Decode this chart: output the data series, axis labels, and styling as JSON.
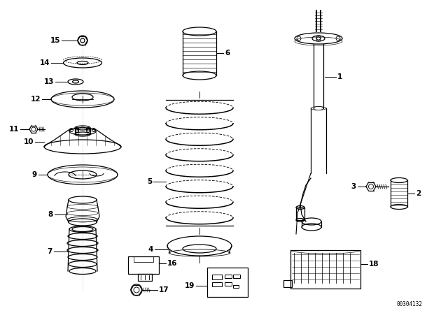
{
  "bg_color": "#ffffff",
  "fig_width": 6.4,
  "fig_height": 4.48,
  "dpi": 100,
  "catalog_number": "00304132",
  "lc": "#000000",
  "lw": 0.9,
  "fs": 7.5
}
